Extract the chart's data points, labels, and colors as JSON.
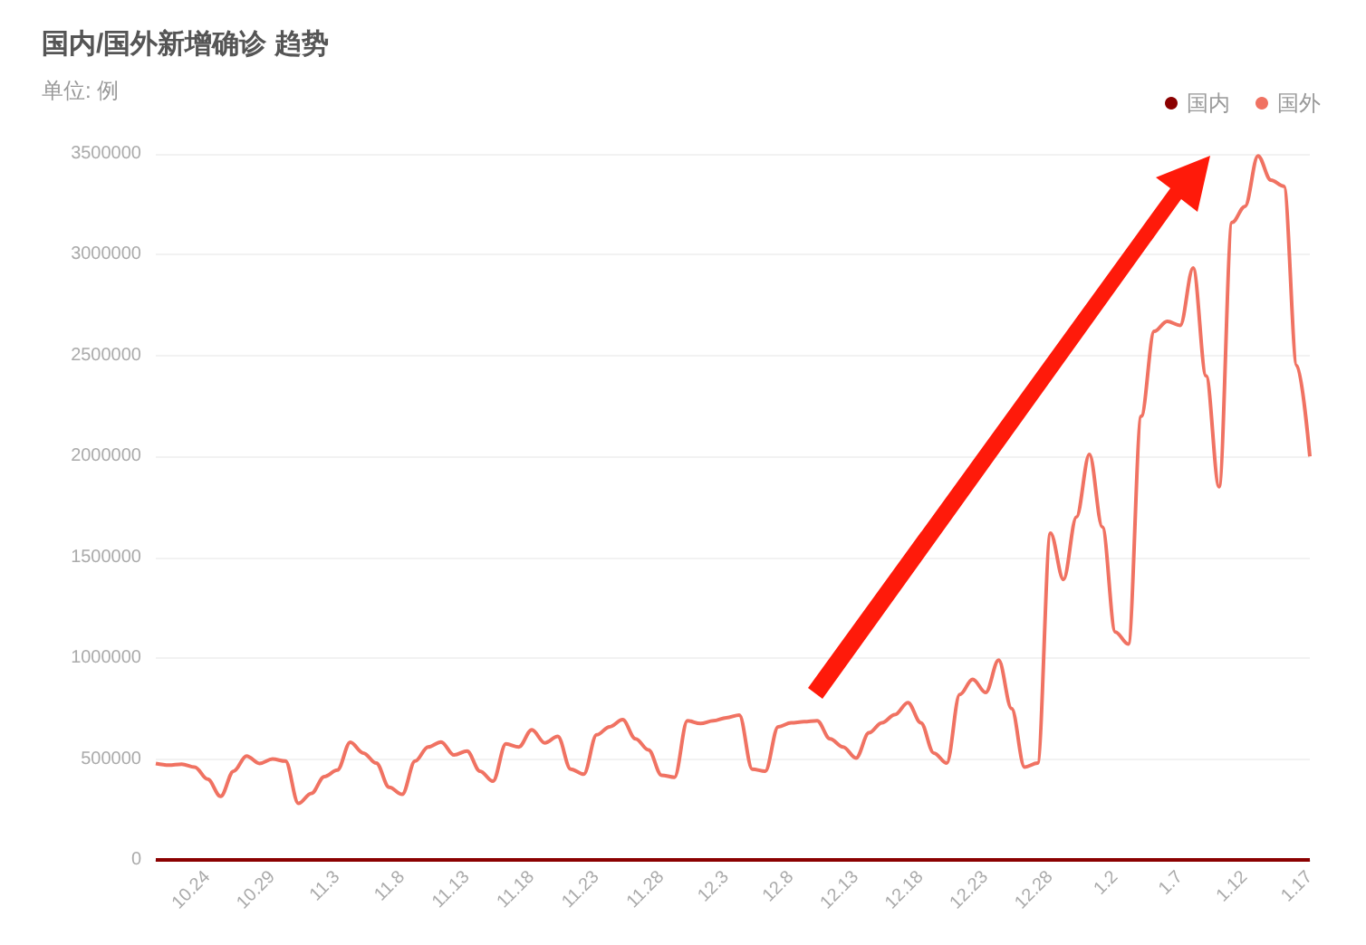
{
  "chart_data": {
    "type": "line",
    "title": "国内/国外新增确诊 趋势",
    "subtitle": "单位: 例",
    "categories": [
      null,
      null,
      null,
      null,
      "10.24",
      null,
      null,
      null,
      null,
      "10.29",
      null,
      null,
      null,
      null,
      "11.3",
      null,
      null,
      null,
      null,
      "11.8",
      null,
      null,
      null,
      null,
      "11.13",
      null,
      null,
      null,
      null,
      "11.18",
      null,
      null,
      null,
      null,
      "11.23",
      null,
      null,
      null,
      null,
      "11.28",
      null,
      null,
      null,
      null,
      "12.3",
      null,
      null,
      null,
      null,
      "12.8",
      null,
      null,
      null,
      null,
      "12.13",
      null,
      null,
      null,
      null,
      "12.18",
      null,
      null,
      null,
      null,
      "12.23",
      null,
      null,
      null,
      null,
      "12.28",
      null,
      null,
      null,
      null,
      "1.2",
      null,
      null,
      null,
      null,
      "1.7",
      null,
      null,
      null,
      null,
      "1.12",
      null,
      null,
      null,
      null,
      "1.17"
    ],
    "series": [
      {
        "name": "国内",
        "color": "#8b0000",
        "values": [
          0,
          0,
          0,
          0,
          0,
          0,
          0,
          0,
          0,
          0,
          0,
          0,
          0,
          0,
          0,
          0,
          0,
          0,
          0,
          0,
          0,
          0,
          0,
          0,
          0,
          0,
          0,
          0,
          0,
          0,
          0,
          0,
          0,
          0,
          0,
          0,
          0,
          0,
          0,
          0,
          0,
          0,
          0,
          0,
          0,
          0,
          0,
          0,
          0,
          0,
          0,
          0,
          0,
          0,
          0,
          0,
          0,
          0,
          0,
          0,
          0,
          0,
          0,
          0,
          0,
          0,
          0,
          0,
          0,
          0,
          0,
          0,
          0,
          0,
          0,
          0,
          0,
          0,
          0,
          0,
          0,
          0,
          0,
          0,
          0,
          0,
          0,
          0,
          0,
          0
        ]
      },
      {
        "name": "国外",
        "color": "#f07262",
        "values": [
          478000,
          470000,
          475000,
          460000,
          400000,
          315000,
          440000,
          515000,
          478000,
          500000,
          490000,
          280000,
          330000,
          413000,
          445000,
          583000,
          530000,
          480000,
          360000,
          325000,
          490000,
          560000,
          585000,
          520000,
          540000,
          440000,
          390000,
          575000,
          560000,
          645000,
          580000,
          612000,
          450000,
          425000,
          620000,
          660000,
          695000,
          600000,
          545000,
          420000,
          410000,
          690000,
          676000,
          690000,
          705000,
          718000,
          450000,
          440000,
          660000,
          680000,
          685000,
          690000,
          600000,
          560000,
          505000,
          630000,
          680000,
          720000,
          780000,
          680000,
          530000,
          480000,
          820000,
          895000,
          830000,
          990000,
          750000,
          460000,
          480000,
          1620000,
          1390000,
          1700000,
          2010000,
          1650000,
          1130000,
          1070000,
          2200000,
          2620000,
          2670000,
          2650000,
          2935000,
          2400000,
          1850000,
          3160000,
          3240000,
          3490000,
          3370000,
          3340000,
          2450000,
          2000000
        ]
      }
    ],
    "ylim": [
      0,
      3500000
    ],
    "yticks": [
      0,
      500000,
      1000000,
      1500000,
      2000000,
      2500000,
      3000000,
      3500000
    ],
    "grid": "y",
    "legend": "top right",
    "marker": "none"
  }
}
